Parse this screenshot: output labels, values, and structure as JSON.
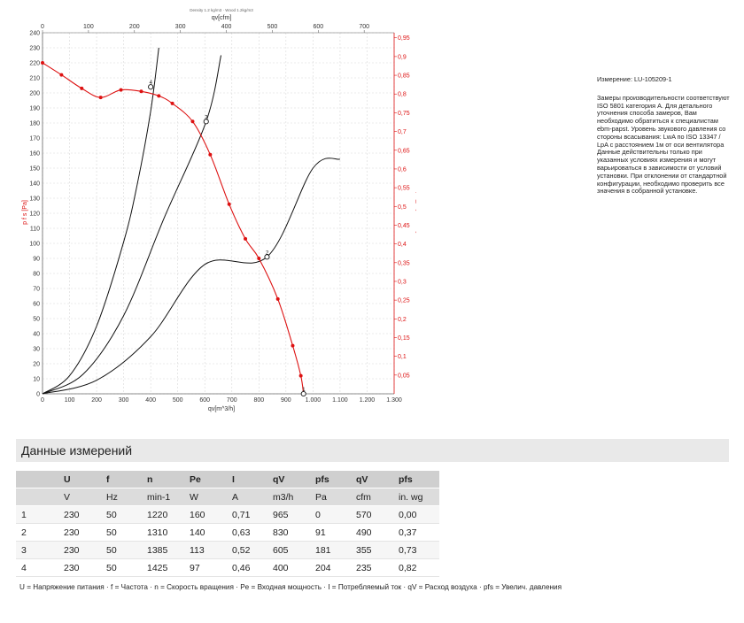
{
  "chart_data": {
    "type": "line",
    "title": "Density 1.2 kg/m3 · Wood 1.2kg/m3",
    "top_xlabel": "qv[cfm]",
    "xlabel": "qv[m^3/h]",
    "ylabel_left": "p f s [Pa]",
    "ylabel_right": "pfs_E [IN H2O]",
    "xlim": [
      0,
      1300
    ],
    "ylim": [
      0,
      240
    ],
    "x_ticks": [
      "0",
      "100",
      "200",
      "300",
      "400",
      "500",
      "600",
      "700",
      "800",
      "900",
      "1.000",
      "1.100",
      "1.200",
      "1.300"
    ],
    "y_ticks": [
      "0",
      "10",
      "20",
      "30",
      "40",
      "50",
      "60",
      "70",
      "80",
      "90",
      "100",
      "110",
      "120",
      "130",
      "140",
      "150",
      "160",
      "170",
      "180",
      "190",
      "200",
      "210",
      "220",
      "230",
      "240"
    ],
    "top_ticks": [
      "0",
      "100",
      "200",
      "300",
      "400",
      "500",
      "600",
      "700"
    ],
    "right_ticks": [
      "0,05",
      "0,1",
      "0,15",
      "0,2",
      "0,25",
      "0,3",
      "0,35",
      "0,4",
      "0,45",
      "0,5",
      "0,55",
      "0,6",
      "0,65",
      "0,7",
      "0,75",
      "0,8",
      "0,85",
      "0,9",
      "0,95"
    ],
    "grid": true,
    "fan_curve": {
      "color": "#dd1111",
      "points": [
        [
          0,
          220
        ],
        [
          70,
          212
        ],
        [
          145,
          203
        ],
        [
          215,
          197
        ],
        [
          290,
          202
        ],
        [
          365,
          201
        ],
        [
          430,
          198
        ],
        [
          480,
          193
        ],
        [
          555,
          181
        ],
        [
          620,
          159
        ],
        [
          690,
          126
        ],
        [
          750,
          103
        ],
        [
          800,
          90
        ],
        [
          870,
          63
        ],
        [
          925,
          32
        ],
        [
          955,
          12
        ],
        [
          965,
          0
        ]
      ]
    },
    "system_curves": [
      {
        "points": [
          [
            0,
            0
          ],
          [
            100,
            12
          ],
          [
            200,
            45
          ],
          [
            300,
            101
          ],
          [
            350,
            139
          ],
          [
            400,
            188
          ],
          [
            430,
            230
          ]
        ]
      },
      {
        "points": [
          [
            0,
            0
          ],
          [
            150,
            13
          ],
          [
            300,
            52
          ],
          [
            450,
            117
          ],
          [
            605,
            181
          ],
          [
            660,
            225
          ]
        ]
      },
      {
        "points": [
          [
            0,
            0
          ],
          [
            200,
            9
          ],
          [
            400,
            38
          ],
          [
            600,
            86
          ],
          [
            830,
            91
          ],
          [
            1000,
            150
          ],
          [
            1100,
            156
          ]
        ]
      }
    ],
    "markers": [
      {
        "label": "1",
        "x": 965,
        "y": 0
      },
      {
        "label": "2",
        "x": 830,
        "y": 91
      },
      {
        "label": "3",
        "x": 605,
        "y": 181
      },
      {
        "label": "4",
        "x": 400,
        "y": 204
      }
    ]
  },
  "side": {
    "measurement": "Измерение: LU-105209-1",
    "text": "Замеры производительности соответствуют ISO 5801 категория A. Для детального уточнения способа замеров, Вам необходимо обратиться к специалистам ebm-papst. Уровень звукового давления со стороны всасывания: LwA по ISO 13347 / LpA с расстоянием 1м от оси вентилятора Данные действительны только при указанных условиях измерения и могут варьироваться в зависимости от условий установки. При отклонении от стандартной конфигурации, необходимо проверить все значения в собранной установке."
  },
  "section_title": "Данные измерений",
  "table": {
    "headers": [
      "U",
      "f",
      "n",
      "Pe",
      "I",
      "qV",
      "pfs",
      "qV",
      "pfs"
    ],
    "units": [
      "V",
      "Hz",
      "min-1",
      "W",
      "A",
      "m3/h",
      "Pa",
      "cfm",
      "in. wg"
    ],
    "rows": [
      [
        "1",
        "230",
        "50",
        "1220",
        "160",
        "0,71",
        "965",
        "0",
        "570",
        "0,00"
      ],
      [
        "2",
        "230",
        "50",
        "1310",
        "140",
        "0,63",
        "830",
        "91",
        "490",
        "0,37"
      ],
      [
        "3",
        "230",
        "50",
        "1385",
        "113",
        "0,52",
        "605",
        "181",
        "355",
        "0,73"
      ],
      [
        "4",
        "230",
        "50",
        "1425",
        "97",
        "0,46",
        "400",
        "204",
        "235",
        "0,82"
      ]
    ]
  },
  "legend": "U = Напряжение питания · f = Частота · n = Скорость вращения · Pe = Входная мощность · I = Потребляемый ток · qV = Расход воздуха · pfs = Увелич. давления"
}
